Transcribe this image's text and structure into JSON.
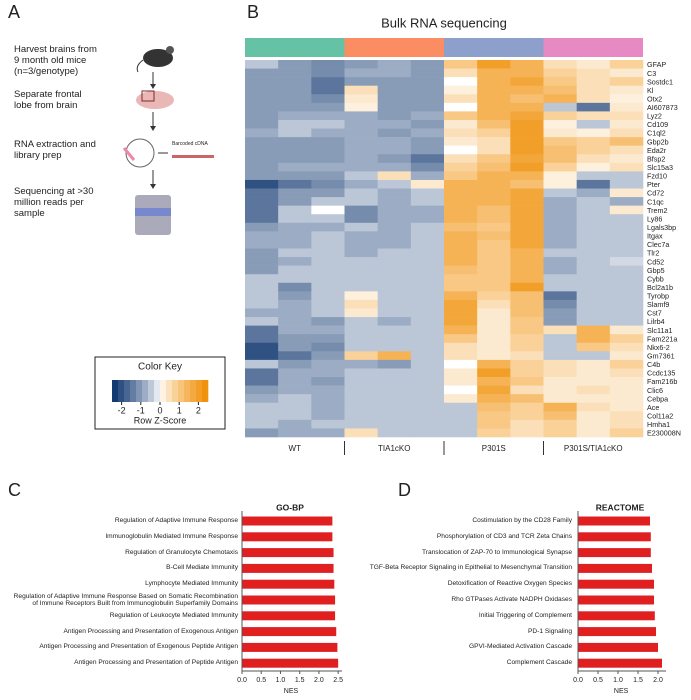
{
  "panels": {
    "letters": [
      "A",
      "B",
      "C",
      "D"
    ]
  },
  "workflow": {
    "steps": [
      "Harvest brains from\n9 month old mice\n(n=3/genotype)",
      "Separate frontal\nlobe from brain",
      "RNA extraction and\nlibrary prep",
      "Sequencing at >30\nmillion reads per\nsample"
    ],
    "cdna_label": "Barcoded cDNA"
  },
  "chart_data": [
    {
      "type": "heatmap",
      "title": "Bulk RNA sequencing",
      "groups": [
        {
          "name": "WT",
          "color": "#66c2a5"
        },
        {
          "name": "TIA1cKO",
          "color": "#fc8d62"
        },
        {
          "name": "P301S",
          "color": "#8da0cb"
        },
        {
          "name": "P301S/TIA1cKO",
          "color": "#e78ac3"
        }
      ],
      "rows": [
        "GFAP",
        "C3",
        "Sostdc1",
        "Kl",
        "Otx2",
        "AI607873",
        "Lyz2",
        "Cd109",
        "C1ql2",
        "Gbp2b",
        "Eda2r",
        "Bfsp2",
        "Slc15a3",
        "Fzd10",
        "Pter",
        "Cd72",
        "C1qc",
        "Trem2",
        "Ly86",
        "Lgals3bp",
        "Itgax",
        "Clec7a",
        "Tlr2",
        "Cd52",
        "Gbp5",
        "Cybb",
        "Bcl2a1b",
        "Tyrobp",
        "Slamf9",
        "Cst7",
        "Lilrb4",
        "Slc11a1",
        "Fam221a",
        "Nkx6-2",
        "Gm7361",
        "C4b",
        "Ccdc135",
        "Fam216b",
        "Clic6",
        "Cebpa",
        "Ace",
        "Col11a2",
        "Hmha1",
        "E230008N"
      ],
      "values": [
        [
          -0.5,
          -1,
          -1.2,
          -1,
          -0.8,
          -1,
          1,
          2,
          1.5,
          0.5,
          0.3,
          0.8
        ],
        [
          -1,
          -1,
          -1.2,
          -0.8,
          -0.8,
          -1,
          0.5,
          1.5,
          1.5,
          0.8,
          0.5,
          0.3
        ],
        [
          -1,
          -1,
          -1.5,
          -1,
          -1,
          -1,
          0,
          1.5,
          1.8,
          1,
          0.5,
          0.8
        ],
        [
          -1,
          -1,
          -1.5,
          0.5,
          -1,
          -1,
          0.2,
          1.5,
          1.5,
          1.2,
          0.5,
          0.3
        ],
        [
          -1,
          -1,
          -1.2,
          0.3,
          -1,
          -1,
          0.5,
          1.5,
          1.2,
          1.5,
          0.5,
          0.2
        ],
        [
          -1,
          -1,
          -1,
          0.2,
          -1,
          -1,
          0,
          1.5,
          1.5,
          -0.5,
          -1.5,
          0.3
        ],
        [
          -1,
          -0.8,
          -0.8,
          -0.8,
          -1,
          -0.8,
          1,
          1.5,
          1.8,
          0.8,
          0.5,
          0.5
        ],
        [
          -1,
          -0.5,
          -0.5,
          -0.8,
          -0.8,
          -1,
          0.3,
          1.2,
          2,
          0.2,
          -0.5,
          0.3
        ],
        [
          -0.8,
          -0.5,
          -0.8,
          -0.8,
          -1,
          -0.8,
          0.5,
          0.8,
          2,
          0.3,
          0.2,
          0.5
        ],
        [
          -1,
          -1,
          -1,
          -0.8,
          -0.8,
          -1,
          0.3,
          0.5,
          2,
          1,
          0.8,
          1.2
        ],
        [
          -1,
          -1,
          -1,
          -0.8,
          -0.8,
          -1,
          0,
          0.5,
          2,
          1.2,
          0.8,
          0.5
        ],
        [
          -1,
          -1,
          -1,
          -0.8,
          -1,
          -1.5,
          0.5,
          1,
          1.8,
          1.2,
          0.5,
          0.3
        ],
        [
          -1,
          -0.8,
          -0.8,
          -0.8,
          -0.8,
          -1.2,
          0.8,
          1.2,
          2,
          0.8,
          0.2,
          0.5
        ],
        [
          -1,
          -1,
          -1,
          -0.5,
          0.5,
          -0.8,
          1,
          1.5,
          1.5,
          0.2,
          -0.5,
          -0.5
        ],
        [
          -2,
          -1.5,
          -1.2,
          -0.8,
          -0.5,
          0.3,
          1.5,
          1.5,
          1.2,
          0.2,
          -1.5,
          -0.5
        ],
        [
          -1.5,
          -1,
          -1,
          -0.5,
          -0.8,
          -0.5,
          1.5,
          1.5,
          1.8,
          -0.5,
          -0.8,
          0.3
        ],
        [
          -1.5,
          -1,
          -0.5,
          -0.5,
          -0.8,
          -0.5,
          1.5,
          1.5,
          1.8,
          -0.8,
          -0.5,
          -0.8
        ],
        [
          -1.5,
          -0.5,
          0,
          -1.2,
          -0.8,
          -0.8,
          1.5,
          1.2,
          1.8,
          -0.8,
          -0.5,
          0.3
        ],
        [
          -1.5,
          -0.5,
          -0.5,
          -1.2,
          -0.8,
          -0.8,
          1.5,
          1.2,
          1.8,
          -0.8,
          -0.5,
          -0.5
        ],
        [
          -1,
          -0.8,
          -0.8,
          -0.5,
          -0.8,
          -0.5,
          1.2,
          1,
          1.8,
          -0.8,
          -0.5,
          -0.5
        ],
        [
          -0.8,
          -0.8,
          -0.5,
          -0.8,
          -0.8,
          -0.5,
          1.5,
          1.2,
          1.8,
          -0.8,
          -0.5,
          -0.5
        ],
        [
          -0.8,
          -0.8,
          -0.5,
          -0.8,
          -0.8,
          -0.5,
          1.5,
          1,
          1.8,
          -0.8,
          -0.5,
          -0.5
        ],
        [
          -1,
          -0.5,
          -0.5,
          -0.8,
          -0.5,
          -0.5,
          1.5,
          1,
          1.5,
          -0.5,
          -0.5,
          -0.5
        ],
        [
          -1,
          -0.8,
          -0.5,
          -0.5,
          -0.5,
          -0.5,
          1.5,
          1,
          1.5,
          -0.8,
          -0.5,
          -0.3
        ],
        [
          -1,
          -0.5,
          -0.5,
          -0.5,
          -0.5,
          -0.5,
          1.2,
          1,
          1.5,
          -0.8,
          -0.5,
          -0.5
        ],
        [
          -0.5,
          -0.5,
          -0.5,
          -0.5,
          -0.5,
          -0.5,
          1,
          1,
          1.5,
          -0.5,
          -0.5,
          -0.5
        ],
        [
          -0.5,
          -1.2,
          -0.5,
          -0.5,
          -0.5,
          -0.5,
          1,
          1,
          2,
          -0.5,
          -0.5,
          -0.5
        ],
        [
          -0.5,
          -1,
          -0.5,
          0.2,
          -0.5,
          -0.5,
          1.5,
          0.8,
          1.2,
          -1.5,
          -0.5,
          -0.5
        ],
        [
          -0.5,
          -0.8,
          -0.5,
          0.5,
          -0.5,
          -0.5,
          1.8,
          0.5,
          1.2,
          -1.2,
          -0.5,
          -0.5
        ],
        [
          -0.8,
          -0.8,
          -0.5,
          0.3,
          -0.5,
          -0.5,
          1.8,
          0.3,
          1.2,
          -1,
          -0.5,
          -0.5
        ],
        [
          -0.5,
          -0.8,
          -1,
          -0.5,
          -0.8,
          -0.5,
          1.8,
          0.3,
          1,
          -1,
          -0.5,
          -0.5
        ],
        [
          -1.5,
          -0.8,
          -0.8,
          -0.5,
          -0.5,
          -0.5,
          1.5,
          0.3,
          1,
          0.5,
          1.5,
          0.3
        ],
        [
          -1.5,
          -1,
          -1,
          -0.5,
          -0.5,
          -0.5,
          1,
          0.3,
          0.8,
          -0.5,
          1.5,
          0.8
        ],
        [
          -2,
          -1,
          -1.2,
          -0.5,
          -0.5,
          -0.5,
          0.5,
          0.3,
          0.8,
          -0.5,
          1,
          0.5
        ],
        [
          -2,
          -1.5,
          -1,
          0.8,
          1.5,
          -0.5,
          0.5,
          0.3,
          0.5,
          -0.5,
          -0.5,
          0.3
        ],
        [
          -0.5,
          -1,
          -0.8,
          -0.8,
          -1,
          -0.5,
          0,
          1.5,
          0.8,
          0.5,
          0.3,
          0.8
        ],
        [
          -1.5,
          -0.8,
          -0.8,
          -0.5,
          -0.5,
          -0.5,
          0.3,
          2,
          0.8,
          0.5,
          0.3,
          0.5
        ],
        [
          -1.5,
          -0.8,
          -1,
          -0.5,
          -0.5,
          -0.5,
          0.3,
          1.5,
          1,
          0.3,
          0.3,
          0.3
        ],
        [
          -1,
          -0.8,
          -0.8,
          -0.5,
          -0.5,
          -0.5,
          0,
          1.8,
          0.5,
          0.3,
          0.5,
          0.3
        ],
        [
          -0.8,
          -0.5,
          -0.8,
          -0.5,
          -0.5,
          -0.5,
          0.3,
          1.5,
          1.2,
          0.3,
          0.3,
          0.3
        ],
        [
          -0.5,
          -0.5,
          -0.8,
          -0.5,
          -0.5,
          -0.5,
          -0.5,
          1.2,
          0.8,
          1.5,
          0.5,
          0.3
        ],
        [
          -0.5,
          -0.5,
          -0.8,
          -0.5,
          -0.5,
          -0.5,
          -0.5,
          1,
          0.8,
          1.2,
          0.3,
          0.5
        ],
        [
          -0.5,
          -0.8,
          -0.5,
          -0.5,
          -0.5,
          -0.5,
          -0.5,
          1,
          0.5,
          0.8,
          0.3,
          0.5
        ],
        [
          -1,
          -0.8,
          -0.8,
          0.5,
          -0.5,
          -0.5,
          -0.5,
          0.8,
          0.5,
          0.8,
          0.3,
          0.8
        ]
      ],
      "colors": [
        "#08306b",
        "#ffffff",
        "#f08c00"
      ],
      "color_key": {
        "title": "Color Key",
        "label": "Row Z-Score",
        "range": [
          -2.5,
          2.5
        ],
        "ticks": [
          -2,
          -1,
          0,
          1,
          2
        ]
      }
    },
    {
      "type": "barh",
      "title": "GO-BP",
      "xlabel": "NES",
      "color": "#e02020",
      "categories": [
        "Regulation of Adaptive Immune Response",
        "Immunoglobulin Mediated Immune Response",
        "Regulation of Granulocyte Chemotaxis",
        "B-Cell Mediate Immunity",
        "Lymphocyte Mediated Immunity",
        "Regulation of Adaptive Immune Response Based on Somatic Recombination\nof Immune Receptors Built from Immunoglobulin Superfamily Domains",
        "Regulation of Leukocyte Mediated Immunity",
        "Antigen Processing and Presentation of Exogenous Antigen",
        "Antigen Processing and Presentation of Exogenous Peptide Antigen",
        "Antigen Processing and Presentation of Peptide Antigen"
      ],
      "values": [
        2.35,
        2.35,
        2.38,
        2.38,
        2.4,
        2.42,
        2.42,
        2.45,
        2.48,
        2.5
      ],
      "xlim": [
        0,
        2.6
      ],
      "xticks": [
        {
          "value": 0,
          "label": "0.0"
        },
        0.5,
        {
          "value": 1,
          "label": "1.0"
        },
        1.5,
        {
          "value": 2,
          "label": "2.0"
        },
        2.5
      ]
    },
    {
      "type": "barh",
      "title": "REACTOME",
      "xlabel": "NES",
      "color": "#e02020",
      "categories": [
        "Costimulation by the CD28 Family",
        "Phosphorylation of CD3 and TCR Zeta Chains",
        "Translocation of ZAP-70 to Immunological Synapse",
        "TGF-Beta Receptor Signaling in Epithelial to Mesenchymal Transition",
        "Detoxification of Reactive Oxygen Species",
        "Rho GTPases Activate NADPH Oxidases",
        "Initial Triggering of Complement",
        "PD-1 Signaling",
        "GPVI-Mediated Activation Cascade",
        "Complement Cascade"
      ],
      "values": [
        1.8,
        1.82,
        1.82,
        1.85,
        1.9,
        1.9,
        1.92,
        1.95,
        2.0,
        2.1
      ],
      "xlim": [
        0,
        2.2
      ],
      "xticks": [
        {
          "value": 0,
          "label": "0.0"
        },
        0.5,
        {
          "value": 1,
          "label": "1.0"
        },
        1.5,
        {
          "value": 2,
          "label": "2.0"
        }
      ]
    }
  ]
}
